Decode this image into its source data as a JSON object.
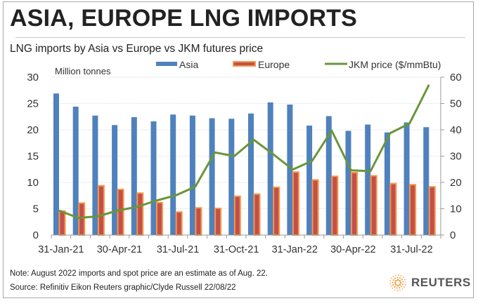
{
  "header": {
    "title": "ASIA, EUROPE LNG IMPORTS",
    "subtitle": "LNG imports by Asia vs Europe vs JKM futures price"
  },
  "footer": {
    "note": "Note: August 2022 imports and spot price are an estimate as of Aug. 22.",
    "source": "Source: Refinitiv Eikon    Reuters graphic/Clyde Russell 22/08/22",
    "logo_text": "REUTERS",
    "logo_icon": "reuters-dot-circle-icon"
  },
  "colors": {
    "asia": "#4f81bd",
    "europe_fill": "#c0504d",
    "europe_border": "#f79646",
    "jkm": "#6a953a",
    "grid": "#e2e6ea",
    "axis": "#9a9a9a"
  },
  "chart_data": {
    "type": "bar",
    "title": "LNG imports by Asia vs Europe vs JKM futures price",
    "ylabel": "Million tonnes",
    "y2label": "JKM price ($/mmBtu)",
    "ylim": [
      0,
      30
    ],
    "y2lim": [
      0,
      60
    ],
    "yticks": [
      "0",
      "5",
      "10",
      "15",
      "20",
      "25",
      "30"
    ],
    "y2ticks": [
      "0",
      "10",
      "20",
      "30",
      "40",
      "50",
      "60"
    ],
    "grid": true,
    "legend_position": "top",
    "categories": [
      "Jan-21",
      "Feb-21",
      "Mar-21",
      "Apr-21",
      "May-21",
      "Jun-21",
      "Jul-21",
      "Aug-21",
      "Sep-21",
      "Oct-21",
      "Nov-21",
      "Dec-21",
      "Jan-22",
      "Feb-22",
      "Mar-22",
      "Apr-22",
      "May-22",
      "Jun-22",
      "Jul-22",
      "Aug-22"
    ],
    "xtick_labels": [
      {
        "index": 0,
        "label": "31-Jan-21"
      },
      {
        "index": 3,
        "label": "30-Apr-21"
      },
      {
        "index": 6,
        "label": "31-Jul-21"
      },
      {
        "index": 9,
        "label": "31-Oct-21"
      },
      {
        "index": 12,
        "label": "31-Jan-22"
      },
      {
        "index": 15,
        "label": "30-Apr-22"
      },
      {
        "index": 18,
        "label": "31-Jul-22"
      }
    ],
    "series": [
      {
        "name": "Asia",
        "type": "bar",
        "axis": "left",
        "values": [
          26.9,
          24.4,
          22.7,
          20.9,
          22.4,
          21.6,
          22.9,
          22.7,
          22.2,
          22.1,
          23.1,
          25.2,
          24.8,
          20.8,
          22.6,
          19.8,
          21.0,
          19.5,
          21.4,
          20.5
        ]
      },
      {
        "name": "Europe",
        "type": "bar",
        "axis": "left",
        "values": [
          4.7,
          6.2,
          9.5,
          8.8,
          8.1,
          6.3,
          4.5,
          5.3,
          5.2,
          7.5,
          7.9,
          9.2,
          12.1,
          10.6,
          11.3,
          12.0,
          11.4,
          9.9,
          9.7,
          9.3
        ]
      },
      {
        "name": "JKM price ($/mmBtu)",
        "type": "line",
        "axis": "right",
        "values": [
          9.3,
          6.5,
          7.1,
          9.3,
          10.7,
          13.1,
          15.1,
          18.4,
          31.4,
          30.0,
          36.2,
          30.7,
          24.9,
          28.2,
          39.7,
          24.6,
          24.3,
          38.7,
          42.4,
          57.1
        ]
      }
    ]
  }
}
